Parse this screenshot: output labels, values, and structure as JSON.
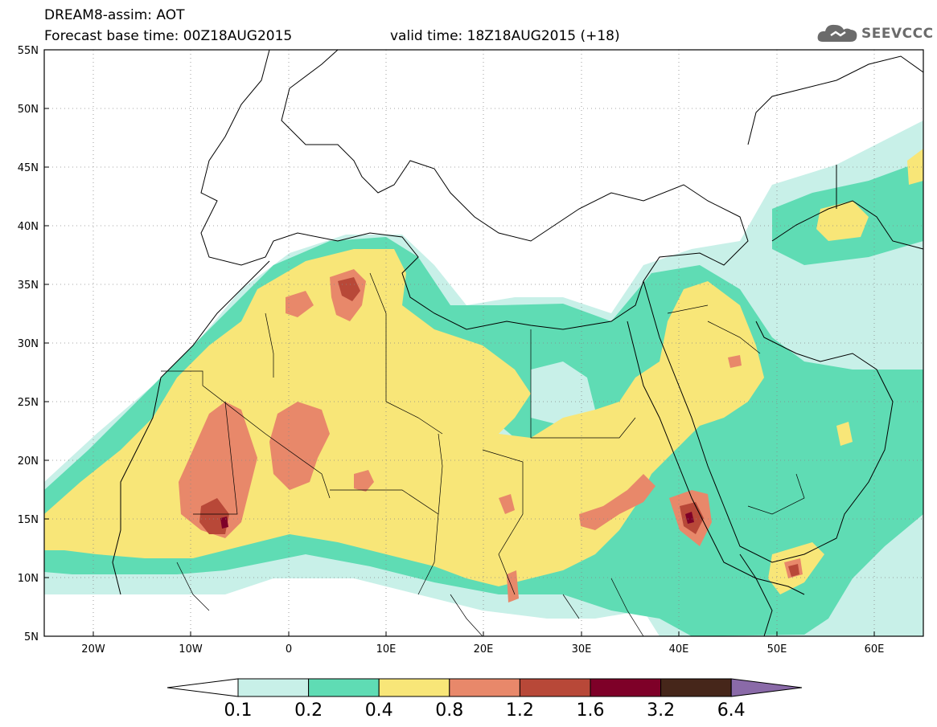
{
  "header": {
    "model_line": "DREAM8-assim: AOT",
    "base_label": "Forecast base time: 00Z18AUG2015",
    "valid_label": "valid time: 18Z18AUG2015 (+18)"
  },
  "logo": {
    "text": "SEEVCCC",
    "icon": "cloud-icon"
  },
  "map": {
    "lon_range": [
      -25,
      65
    ],
    "lat_range": [
      5,
      55
    ],
    "lat_ticks": [
      "55N",
      "50N",
      "45N",
      "40N",
      "35N",
      "30N",
      "25N",
      "20N",
      "15N",
      "10N",
      "5N"
    ],
    "lon_ticks": [
      "20W",
      "10W",
      "0",
      "10E",
      "20E",
      "30E",
      "40E",
      "50E",
      "60E"
    ],
    "grid": "dotted"
  },
  "colorbar": {
    "labels": [
      "0.1",
      "0.2",
      "0.4",
      "0.8",
      "1.2",
      "1.6",
      "3.2",
      "6.4"
    ],
    "colors": [
      "#ffffff",
      "#c8f0e8",
      "#5fdcb4",
      "#f8e678",
      "#e8886a",
      "#b84838",
      "#7e0028",
      "#46261a",
      "#8a6aa8"
    ]
  }
}
